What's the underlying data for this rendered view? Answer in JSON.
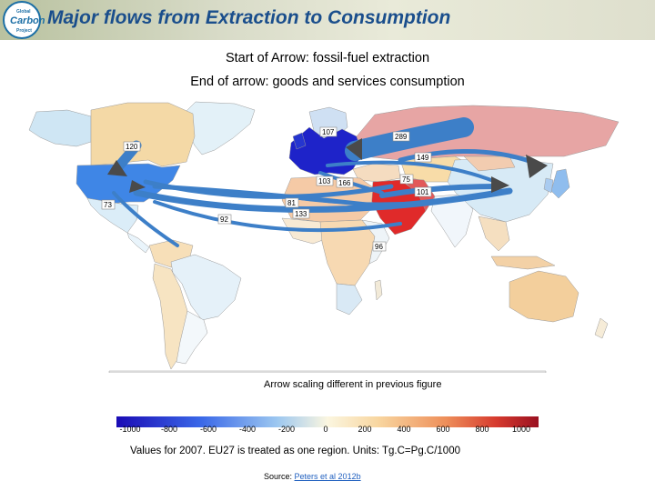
{
  "header": {
    "title": "Major flows from Extraction to Consumption",
    "logo_text": [
      "Global",
      "Carbon",
      "Project"
    ]
  },
  "subtitle": {
    "line1": "Start of Arrow: fossil-fuel extraction",
    "line2": "End of arrow: goods and services consumption"
  },
  "map": {
    "flows": [
      {
        "value": "120"
      },
      {
        "value": "73"
      },
      {
        "value": "107"
      },
      {
        "value": "289"
      },
      {
        "value": "149"
      },
      {
        "value": "103"
      },
      {
        "value": "166"
      },
      {
        "value": "75"
      },
      {
        "value": "101"
      },
      {
        "value": "81"
      },
      {
        "value": "133"
      },
      {
        "value": "92"
      },
      {
        "value": "96"
      }
    ],
    "colors": {
      "ocean": "#ffffff",
      "arrow": "#3d7fc8",
      "arrow_head": "#4a4a4a",
      "strong_import": "#2f3fd0",
      "strong_export": "#cc1a1a"
    }
  },
  "note": "Arrow scaling different in previous figure",
  "colorbar": {
    "ticks": [
      "-1000",
      "-800",
      "-600",
      "-400",
      "-200",
      "0",
      "200",
      "400",
      "600",
      "800",
      "1000"
    ],
    "colors": [
      "#1a0bb5",
      "#3a68e8",
      "#7fb3ee",
      "#cbe4f4",
      "#fbf6e0",
      "#f8d6a0",
      "#ee8f5a",
      "#d63a2e",
      "#9a1020"
    ]
  },
  "caption": "Values for 2007. EU27 is treated as one region. Units: Tg.C=Pg.C/1000",
  "source": {
    "prefix": "Source: ",
    "link_text": "Peters et al 2012b"
  }
}
